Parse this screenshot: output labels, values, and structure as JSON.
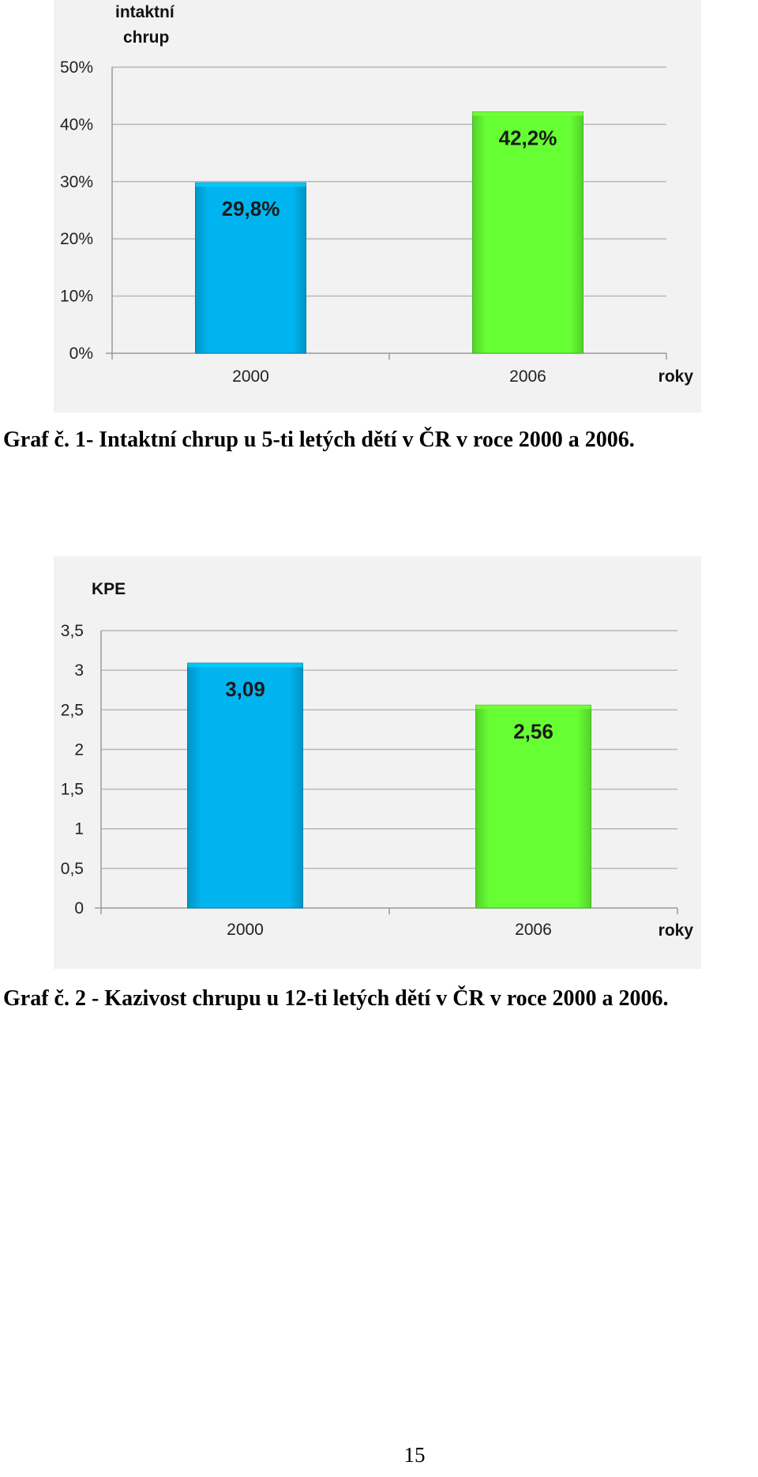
{
  "charts": [
    {
      "caption": "Graf č. 1- Intaktní chrup u 5-ti letých dětí v ČR v roce 2000 a 2006.",
      "chart_data": {
        "type": "bar",
        "categories": [
          "2000",
          "2006"
        ],
        "values": [
          29.8,
          42.2
        ],
        "value_labels": [
          "29,8%",
          "42,2%"
        ],
        "ylabel_lines": [
          "intaktní",
          "chrup"
        ],
        "xlabel": "roky",
        "ylim": [
          0,
          50
        ],
        "yticks": [
          0,
          10,
          20,
          30,
          40,
          50
        ],
        "ytick_labels": [
          "0%",
          "10%",
          "20%",
          "30%",
          "40%",
          "50%"
        ],
        "colors": [
          "#00b4f0",
          "#66ff33"
        ],
        "grid": true,
        "legend": "none"
      }
    },
    {
      "caption": "Graf č. 2 - Kazivost chrupu u 12-ti letých dětí v ČR v roce 2000 a 2006.",
      "chart_data": {
        "type": "bar",
        "categories": [
          "2000",
          "2006"
        ],
        "values": [
          3.09,
          2.56
        ],
        "value_labels": [
          "3,09",
          "2,56"
        ],
        "ylabel_lines": [
          "KPE"
        ],
        "xlabel": "roky",
        "ylim": [
          0,
          3.5
        ],
        "yticks": [
          0,
          0.5,
          1,
          1.5,
          2,
          2.5,
          3,
          3.5
        ],
        "ytick_labels": [
          "0",
          "0,5",
          "1",
          "1,5",
          "2",
          "2,5",
          "3",
          "3,5"
        ],
        "colors": [
          "#00b4f0",
          "#66ff33"
        ],
        "grid": true,
        "legend": "none"
      }
    }
  ],
  "page_number": "15"
}
